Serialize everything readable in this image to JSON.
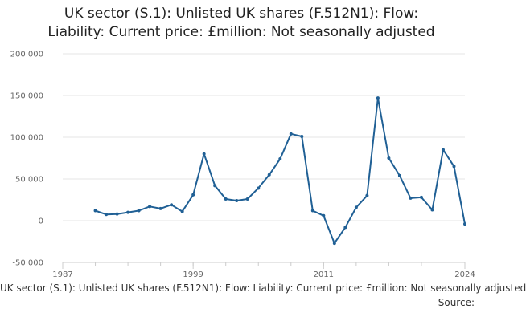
{
  "chart_data": {
    "type": "line",
    "title_line1": "UK sector (S.1): Unlisted UK shares (F.512N1): Flow:",
    "title_line2": "Liability: Current price: £million: Not seasonally adjusted",
    "xlabel": "",
    "ylabel": "",
    "xlim": [
      1987,
      2024
    ],
    "ylim": [
      -50000,
      200000
    ],
    "x_ticks": [
      "1987",
      "1999",
      "2011",
      "2024"
    ],
    "y_ticks": [
      "200 000",
      "150 000",
      "100 000",
      "50 000",
      "0",
      "-50 000"
    ],
    "y_tick_values": [
      200000,
      150000,
      100000,
      50000,
      0,
      -50000
    ],
    "grid": true,
    "series": [
      {
        "name": "UK sector (S.1): Unlisted UK shares (F.512N1): Flow: Liability: Current price: £million: Not seasonally adjusted",
        "color": "#206095",
        "x": [
          1990,
          1991,
          1992,
          1993,
          1994,
          1995,
          1996,
          1997,
          1998,
          1999,
          2000,
          2001,
          2002,
          2003,
          2004,
          2005,
          2006,
          2007,
          2008,
          2009,
          2010,
          2011,
          2012,
          2013,
          2014,
          2015,
          2016,
          2017,
          2018,
          2019,
          2020,
          2021,
          2022,
          2023,
          2024
        ],
        "values": [
          12000,
          7500,
          8000,
          10000,
          12000,
          17000,
          14500,
          19000,
          11000,
          31000,
          80000,
          42000,
          26000,
          24000,
          26000,
          39000,
          55000,
          74000,
          104000,
          101000,
          12000,
          6000,
          -27000,
          -8000,
          16000,
          30000,
          147000,
          75000,
          54000,
          27000,
          28000,
          13000,
          85000,
          65000,
          -4000
        ]
      }
    ],
    "legend_label": "UK sector (S.1): Unlisted UK shares (F.512N1): Flow: Liability: Current price: £million: Not seasonally adjusted",
    "source_label": "Source:"
  }
}
